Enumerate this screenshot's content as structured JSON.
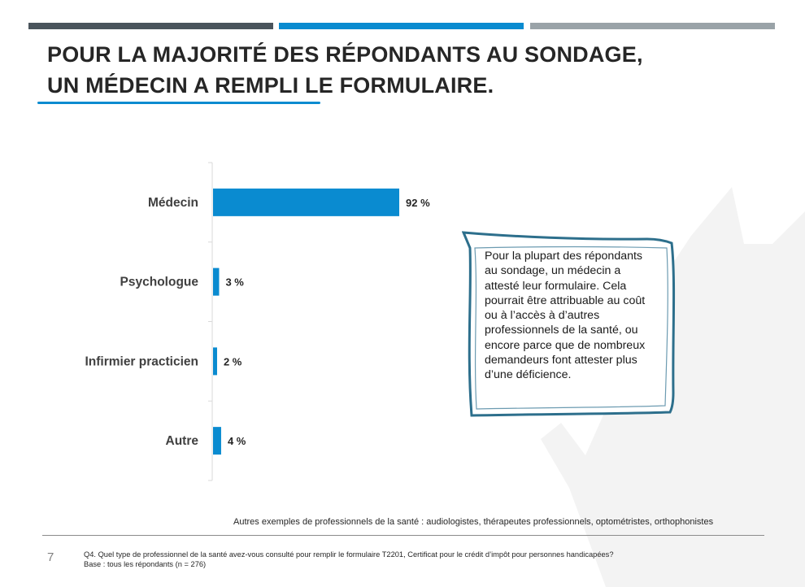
{
  "slide": {
    "title_line1": "POUR LA MAJORITÉ DES RÉPONDANTS AU SONDAGE,",
    "title_line2": "UN MÉDECIN A REMPLI LE FORMULAIRE.",
    "callout_text": "Pour la plupart des répondants au sondage, un médecin a attesté leur formulaire. Cela pourrait être attribuable au coût ou à l’accès à d’autres professionnels de la santé, ou encore parce que de nombreux demandeurs font attester plus d’une déficience.",
    "footnote": "Autres exemples de professionnels de la santé : audiologistes, thérapeutes professionnels, optométristes, orthophonistes",
    "page_number": "7",
    "question": "Q4. Quel type de professionnel de la santé avez-vous consulté pour remplir le formulaire T2201, Certificat pour le crédit d’impôt pour personnes handicapées?",
    "base": "Base : tous les répondants (n = 276)"
  },
  "colors": {
    "bar": "#0a8bd0",
    "top_bar_dark": "#4a545c",
    "top_bar_blue": "#0a8bd0",
    "top_bar_gray": "#9aa3a8",
    "callout_border": "#2d6f8c",
    "watermark": "#f3f3f3"
  },
  "chart_data": {
    "type": "bar",
    "orientation": "horizontal",
    "categories": [
      "Médecin",
      "Psychologue",
      "Infirmier practicien",
      "Autre"
    ],
    "values": [
      92,
      3,
      2,
      4
    ],
    "value_labels": [
      "92 %",
      "3 %",
      "2 %",
      "4 %"
    ],
    "xlim": [
      0,
      100
    ],
    "grid": false,
    "legend": "none"
  }
}
